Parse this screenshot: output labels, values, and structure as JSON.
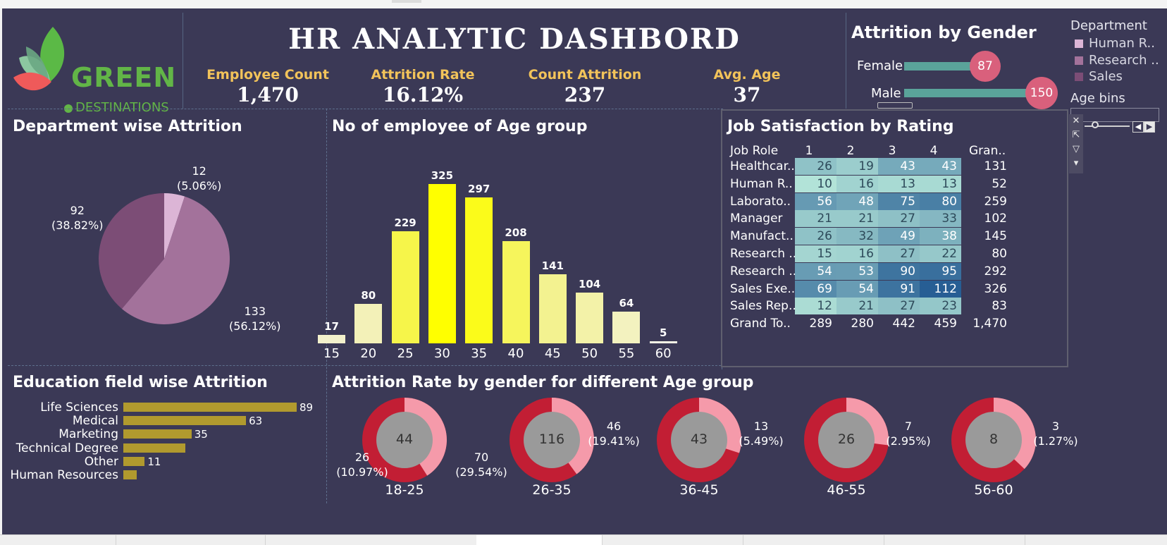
{
  "header": {
    "title": "HR ANALYTIC DASHBORD",
    "kpis": [
      {
        "label": "Employee Count",
        "value": "1,470"
      },
      {
        "label": "Attrition Rate",
        "value": "16.12%"
      },
      {
        "label": "Count Attrition",
        "value": "237"
      },
      {
        "label": "Avg. Age",
        "value": "37"
      }
    ]
  },
  "logo": {
    "line1": "GREEN",
    "line2": "DESTINATIONS"
  },
  "gender": {
    "title": "Attrition by Gender",
    "rows": [
      {
        "label": "Female",
        "value": "87"
      },
      {
        "label": "Male",
        "value": "150"
      }
    ]
  },
  "legend": {
    "department_title": "Department",
    "departments": [
      {
        "label": "Human R..",
        "color": "#dcb5d6"
      },
      {
        "label": "Research ..",
        "color": "#a3729b"
      },
      {
        "label": "Sales",
        "color": "#7c4d76"
      }
    ],
    "age_bins_title": "Age bins"
  },
  "dept_attrition": {
    "title": "Department wise Attrition",
    "slices": [
      {
        "value": 12,
        "pct": "(5.06%)",
        "color": "#dcb5d6"
      },
      {
        "value": 133,
        "pct": "(56.12%)",
        "color": "#a3729b"
      },
      {
        "value": 92,
        "pct": "(38.82%)",
        "color": "#7c4d76"
      }
    ]
  },
  "age_group": {
    "title": "No of employee of Age group",
    "bars": [
      {
        "age": "15",
        "value": 17,
        "color": "#f3f1cc"
      },
      {
        "age": "20",
        "value": 80,
        "color": "#f3f1b8"
      },
      {
        "age": "25",
        "value": 229,
        "color": "#f6f54a"
      },
      {
        "age": "30",
        "value": 325,
        "color": "#ffff00"
      },
      {
        "age": "35",
        "value": 297,
        "color": "#fbfb1a"
      },
      {
        "age": "40",
        "value": 208,
        "color": "#f6f55c"
      },
      {
        "age": "45",
        "value": 141,
        "color": "#f3f290"
      },
      {
        "age": "50",
        "value": 104,
        "color": "#f3f2a8"
      },
      {
        "age": "55",
        "value": 64,
        "color": "#f3f2bf"
      },
      {
        "age": "60",
        "value": 5,
        "color": "#f5f5e6"
      }
    ]
  },
  "job_satisfaction": {
    "title": "Job Satisfaction by Rating",
    "columns": [
      "Job Role",
      "1",
      "2",
      "3",
      "4",
      "Gran.."
    ],
    "rows": [
      {
        "role": "Healthcar..",
        "vals": [
          26,
          19,
          43,
          43
        ],
        "total": "131"
      },
      {
        "role": "Human R..",
        "vals": [
          10,
          16,
          13,
          13
        ],
        "total": "52"
      },
      {
        "role": "Laborato..",
        "vals": [
          56,
          48,
          75,
          80
        ],
        "total": "259"
      },
      {
        "role": "Manager",
        "vals": [
          21,
          21,
          27,
          33
        ],
        "total": "102"
      },
      {
        "role": "Manufact..",
        "vals": [
          26,
          32,
          49,
          38
        ],
        "total": "145"
      },
      {
        "role": "Research ..",
        "vals": [
          15,
          16,
          27,
          22
        ],
        "total": "80"
      },
      {
        "role": "Research ..",
        "vals": [
          54,
          53,
          90,
          95
        ],
        "total": "292"
      },
      {
        "role": "Sales Exe..",
        "vals": [
          69,
          54,
          91,
          112
        ],
        "total": "326"
      },
      {
        "role": "Sales Rep..",
        "vals": [
          12,
          21,
          27,
          23
        ],
        "total": "83"
      }
    ],
    "grand": {
      "role": "Grand To..",
      "vals": [
        "289",
        "280",
        "442",
        "459"
      ],
      "total": "1,470"
    }
  },
  "education": {
    "title": "Education field wise Attrition",
    "items": [
      {
        "label": "Life Sciences",
        "value": 89,
        "shown": "89"
      },
      {
        "label": "Medical",
        "value": 63,
        "shown": "63"
      },
      {
        "label": "Marketing",
        "value": 35,
        "shown": "35"
      },
      {
        "label": "Technical Degree",
        "value": 32,
        "shown": ""
      },
      {
        "label": "Other",
        "value": 11,
        "shown": "11"
      },
      {
        "label": "Human Resources",
        "value": 7,
        "shown": ""
      }
    ]
  },
  "gender_age": {
    "title": "Attrition Rate by gender for different Age group",
    "donuts": [
      {
        "group": "18-25",
        "center": "44",
        "side_value": "26",
        "side_pct": "(10.97%)",
        "side": "left",
        "light_share": 0.41
      },
      {
        "group": "26-35",
        "center": "116",
        "side_value": "46",
        "side_pct": "(19.41%)",
        "side": "right",
        "left_value": "70",
        "left_pct": "(29.54%)",
        "light_share": 0.4
      },
      {
        "group": "36-45",
        "center": "43",
        "side_value": "13",
        "side_pct": "(5.49%)",
        "side": "right",
        "light_share": 0.3
      },
      {
        "group": "46-55",
        "center": "26",
        "side_value": "7",
        "side_pct": "(2.95%)",
        "side": "right",
        "light_share": 0.27
      },
      {
        "group": "56-60",
        "center": "8",
        "side_value": "3",
        "side_pct": "(1.27%)",
        "side": "right",
        "light_share": 0.37
      }
    ]
  },
  "colors": {
    "background": "#3b3956",
    "kpi_label": "#f2c35a",
    "donut_dark": "#c21e34",
    "donut_light": "#f59aaa",
    "donut_center": "#9a9a9a"
  }
}
